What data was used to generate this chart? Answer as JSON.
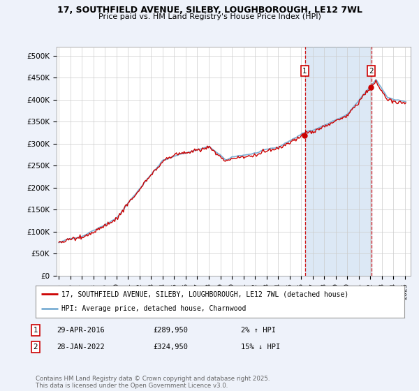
{
  "title_line1": "17, SOUTHFIELD AVENUE, SILEBY, LOUGHBOROUGH, LE12 7WL",
  "title_line2": "Price paid vs. HM Land Registry's House Price Index (HPI)",
  "yticks": [
    0,
    50000,
    100000,
    150000,
    200000,
    250000,
    300000,
    350000,
    400000,
    450000,
    500000
  ],
  "ytick_labels": [
    "£0",
    "£50K",
    "£100K",
    "£150K",
    "£200K",
    "£250K",
    "£300K",
    "£350K",
    "£400K",
    "£450K",
    "£500K"
  ],
  "ymin": 0,
  "ymax": 520000,
  "xmin": 1994.8,
  "xmax": 2025.5,
  "background_color": "#eef2fa",
  "plot_bg_color": "#ffffff",
  "grid_color": "#cccccc",
  "hpi_color": "#7bafd4",
  "price_color": "#cc0000",
  "shade_color": "#dce8f5",
  "vline_color": "#cc0000",
  "marker1_x": 2016.33,
  "marker1_y": 289950,
  "marker2_x": 2022.08,
  "marker2_y": 324950,
  "legend_line1": "17, SOUTHFIELD AVENUE, SILEBY, LOUGHBOROUGH, LE12 7WL (detached house)",
  "legend_line2": "HPI: Average price, detached house, Charnwood",
  "copyright": "Contains HM Land Registry data © Crown copyright and database right 2025.\nThis data is licensed under the Open Government Licence v3.0.",
  "xtick_years": [
    1995,
    1996,
    1997,
    1998,
    1999,
    2000,
    2001,
    2002,
    2003,
    2004,
    2005,
    2006,
    2007,
    2008,
    2009,
    2010,
    2011,
    2012,
    2013,
    2014,
    2015,
    2016,
    2017,
    2018,
    2019,
    2020,
    2021,
    2022,
    2023,
    2024,
    2025
  ]
}
